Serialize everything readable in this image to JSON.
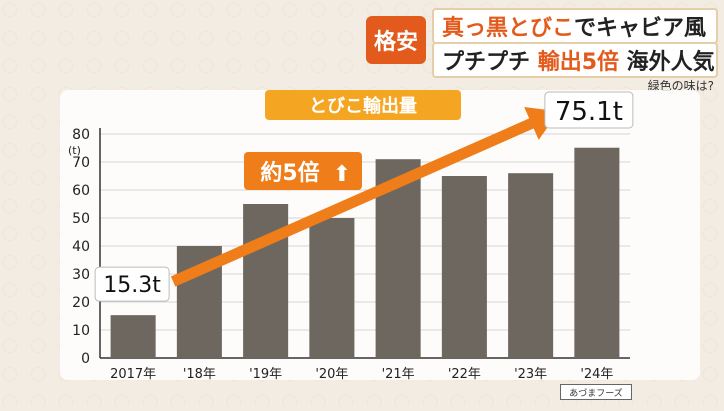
{
  "headline": {
    "badge": "格安",
    "line1_a": "真っ黒とびこ",
    "line1_b": "でキャビア風",
    "line2_a": "プチプチ",
    "line2_b": "輸出5倍",
    "line2_c": "海外人気"
  },
  "subquestion": "緑色の味は?",
  "chart_data": {
    "type": "bar",
    "title": "とびこ輸出量",
    "ylabel": "(t)",
    "ylim": [
      0,
      80
    ],
    "yticks": [
      "0",
      "10",
      "20",
      "30",
      "40",
      "50",
      "60",
      "70",
      "80"
    ],
    "categories": [
      "2017年",
      "'18年",
      "'19年",
      "'20年",
      "'21年",
      "'22年",
      "'23年",
      "'24年"
    ],
    "values": [
      15.3,
      40,
      55,
      50,
      71,
      65,
      66,
      75.1
    ],
    "grid": true,
    "annotations": {
      "first_value": "15.3t",
      "last_value": "75.1t",
      "growth": "約5倍",
      "growth_arrow": "⬆"
    },
    "colors": {
      "bar": "#6e675f",
      "arrow": "#ef7d1a",
      "title_bg": "#f4a623"
    }
  },
  "source": "あづまフーズ"
}
